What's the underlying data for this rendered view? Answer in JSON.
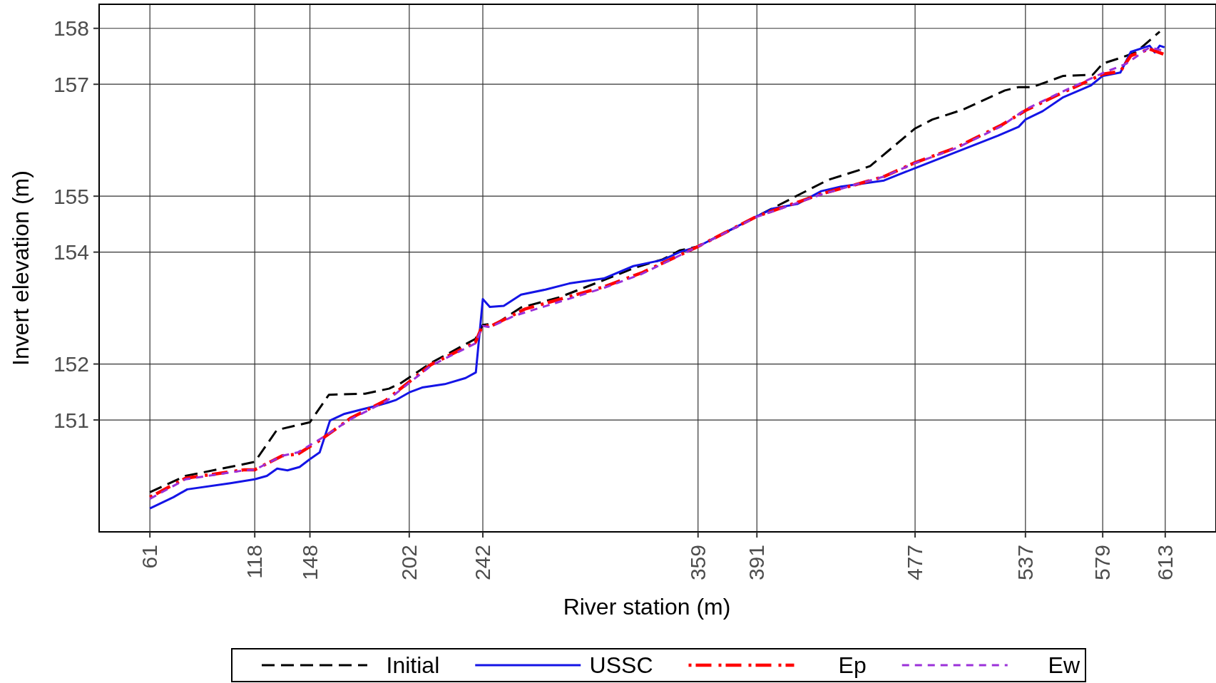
{
  "chart_data": {
    "type": "line",
    "xlabel": "River station (m)",
    "ylabel": "Invert elevation (m)",
    "xlim": [
      33.4,
      640.6
    ],
    "ylim": [
      149.0,
      158.43
    ],
    "xticks": [
      61,
      118,
      148,
      202,
      242,
      359,
      391,
      477,
      537,
      579,
      613
    ],
    "yticks": [
      151,
      152,
      154,
      155,
      157,
      158
    ],
    "grid": true,
    "legend": "bottom",
    "series": [
      {
        "name": "Initial",
        "color": "#000000",
        "line_style": "dashed",
        "x": [
          61,
          80.4,
          118,
          130,
          148,
          158.3,
          178,
          191,
          197,
          213.8,
          238,
          242,
          249.7,
          262.8,
          283.4,
          307.8,
          324.7,
          339.7,
          349,
          359,
          391,
          414.7,
          429.7,
          447,
          452.6,
          477,
          486.4,
          503.3,
          525.8,
          533.3,
          540.8,
          557.6,
          573.6,
          579,
          589.5,
          597,
          610
        ],
        "values": [
          149.71,
          150.0,
          150.25,
          150.82,
          150.96,
          151.45,
          151.47,
          151.56,
          151.65,
          152.02,
          152.45,
          152.7,
          152.73,
          153.01,
          153.19,
          153.5,
          153.72,
          153.87,
          154.03,
          154.1,
          154.64,
          155.04,
          155.29,
          155.47,
          155.54,
          156.21,
          156.37,
          156.55,
          156.89,
          156.95,
          156.95,
          157.15,
          157.17,
          157.37,
          157.48,
          157.57,
          157.94
        ]
      },
      {
        "name": "USSC",
        "color": "#1414e6",
        "line_style": "solid",
        "x": [
          61,
          73.8,
          81.3,
          104.8,
          118,
          124.6,
          130.2,
          135.8,
          142.4,
          148,
          153.3,
          158.9,
          166.8,
          183.7,
          190.3,
          195,
          202.5,
          209,
          221.3,
          232.6,
          238.2,
          242,
          245.8,
          253.4,
          262.8,
          276,
          289,
          307.8,
          323.8,
          339.7,
          349,
          359,
          391,
          399.8,
          413,
          426,
          436.7,
          460.1,
          467.6,
          477,
          499.5,
          522,
          533.3,
          537,
          546.4,
          557.6,
          572.6,
          579,
          588.6,
          594.3,
          604.5,
          607.3,
          610,
          612.6
        ],
        "values": [
          149.42,
          149.62,
          149.76,
          149.87,
          149.94,
          150.0,
          150.13,
          150.1,
          150.16,
          150.3,
          150.42,
          150.99,
          151.11,
          151.25,
          151.31,
          151.36,
          151.5,
          151.58,
          151.64,
          151.75,
          151.85,
          153.16,
          153.02,
          153.04,
          153.24,
          153.33,
          153.44,
          153.53,
          153.75,
          153.86,
          154.0,
          154.1,
          154.64,
          154.78,
          154.86,
          155.09,
          155.17,
          155.28,
          155.38,
          155.5,
          155.79,
          156.08,
          156.24,
          156.37,
          156.52,
          156.77,
          156.98,
          157.15,
          157.21,
          157.58,
          157.69,
          157.57,
          157.69,
          157.66
        ]
      },
      {
        "name": "Ep",
        "color": "#ff0000",
        "line_style": "dashed",
        "x": [
          61,
          80.4,
          112.4,
          118,
          133,
          141.4,
          153.6,
          170.5,
          189.3,
          213.8,
          238,
          242,
          246,
          264.7,
          307.8,
          328.4,
          359,
          391,
          413,
          426,
          444,
          460,
          477,
          499.5,
          523.9,
          537,
          555.8,
          579,
          588.6,
          594.3,
          604.5,
          612
        ],
        "values": [
          149.62,
          149.96,
          150.11,
          150.11,
          150.36,
          150.39,
          150.64,
          151.04,
          151.35,
          151.99,
          152.39,
          152.7,
          152.67,
          152.98,
          153.38,
          153.63,
          154.1,
          154.64,
          154.89,
          155.04,
          155.2,
          155.35,
          155.6,
          155.87,
          156.27,
          156.53,
          156.83,
          157.18,
          157.23,
          157.51,
          157.63,
          157.54
        ]
      },
      {
        "name": "Ew",
        "color": "#9b30d9",
        "line_style": "dashed",
        "x": [
          61,
          80.4,
          112.4,
          118,
          133,
          141.4,
          153.6,
          170.5,
          189.3,
          213.8,
          238,
          242,
          246,
          259,
          307.8,
          328.4,
          359,
          391,
          413,
          426,
          444,
          460,
          477,
          499.5,
          523.9,
          537,
          555.8,
          579,
          591.4,
          604.5,
          612
        ],
        "values": [
          149.59,
          149.94,
          150.1,
          150.11,
          150.36,
          150.42,
          150.66,
          151.02,
          151.33,
          151.97,
          152.37,
          152.68,
          152.66,
          152.86,
          153.36,
          153.61,
          154.1,
          154.63,
          154.88,
          155.03,
          155.2,
          155.35,
          155.59,
          155.86,
          156.25,
          156.55,
          156.85,
          157.2,
          157.36,
          157.66,
          157.6
        ]
      }
    ]
  }
}
